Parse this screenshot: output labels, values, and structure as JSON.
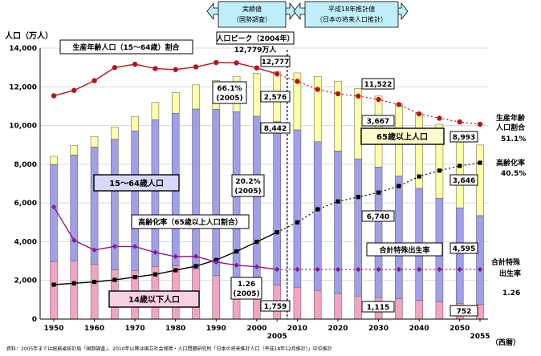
{
  "chart_data": {
    "type": "bar",
    "title": "",
    "ylabel": "人口（万人）",
    "xlabel": "（西暦）",
    "ylim": [
      0,
      14000
    ],
    "yticks": [
      "0",
      "2,000",
      "4,000",
      "6,000",
      "8,000",
      "10,000",
      "12,000",
      "14,000"
    ],
    "xtick_labels": [
      "1950",
      "1960",
      "1970",
      "1980",
      "1990",
      "2000",
      "2005",
      "2010",
      "2020",
      "2030",
      "2040",
      "2050",
      "2055"
    ],
    "years": [
      1950,
      1955,
      1960,
      1965,
      1970,
      1975,
      1980,
      1985,
      1990,
      1995,
      2000,
      2005,
      2010,
      2015,
      2020,
      2025,
      2030,
      2035,
      2040,
      2045,
      2050,
      2055
    ],
    "series": [
      {
        "name": "14歳以下人口",
        "color": "#f3a3c4",
        "values": [
          2979,
          3012,
          2843,
          2553,
          2515,
          2723,
          2751,
          2603,
          2249,
          2001,
          1847,
          1759,
          1648,
          1484,
          1324,
          1195,
          1115,
          1047,
          973,
          893,
          821,
          752
        ]
      },
      {
        "name": "15〜64歳人口",
        "color": "#9f9fea",
        "values": [
          5017,
          5473,
          6047,
          6744,
          7212,
          7581,
          7883,
          8251,
          8590,
          8717,
          8638,
          8442,
          8128,
          7681,
          7363,
          7085,
          6740,
          6343,
          5787,
          5353,
          4930,
          4595
        ]
      },
      {
        "name": "65歳以上人口",
        "color": "#ffffa8",
        "values": [
          411,
          479,
          540,
          624,
          739,
          887,
          1065,
          1247,
          1489,
          1826,
          2204,
          2576,
          2941,
          3378,
          3590,
          3635,
          3667,
          3725,
          3856,
          3819,
          3764,
          3646
        ]
      }
    ],
    "lines": [
      {
        "name": "生産年齢人口割合",
        "color": "#b0161c",
        "values": [
          59.6,
          61.2,
          64.1,
          68.0,
          69.0,
          67.7,
          67.4,
          68.2,
          69.5,
          69.4,
          67.9,
          66.1,
          63.9,
          61.5,
          60.2,
          59.5,
          58.5,
          57.0,
          54.2,
          52.9,
          51.8,
          51.1
        ]
      },
      {
        "name": "高齢化率",
        "color": "#000000",
        "values": [
          4.9,
          5.3,
          5.7,
          6.3,
          7.1,
          7.9,
          9.1,
          10.3,
          12.1,
          14.6,
          17.4,
          20.2,
          23.1,
          26.9,
          29.2,
          30.5,
          31.8,
          33.7,
          36.5,
          38.2,
          39.6,
          40.5
        ]
      },
      {
        "name": "合計特殊出生率",
        "color": "#8b1a8b",
        "values": [
          3.65,
          2.37,
          2.0,
          2.14,
          2.13,
          1.91,
          1.75,
          1.76,
          1.54,
          1.42,
          1.36,
          1.26,
          1.26,
          1.26,
          1.26,
          1.26,
          1.26,
          1.26,
          1.26,
          1.26,
          1.26,
          1.26
        ]
      }
    ],
    "ratio_axis_max": 100,
    "tfr_axis_max": 5.4,
    "legend_labels": {
      "working_ratio": "生産年齢人口（15〜64歳）割合",
      "elderly_ratio": "高齢化率（65歳以上人口割合）",
      "child": "14歳以下人口",
      "working": "15〜64歳人口",
      "elderly": "65歳以上人口",
      "tfr": "合計特殊出生率"
    },
    "header": {
      "actual_line1": "実績値",
      "actual_line2": "（国勢調査）",
      "proj_line1": "平成18年推計値",
      "proj_line2": "（日本の将来人口推計）"
    },
    "annotations": {
      "peak_title": "人口ピーク（2004年）",
      "peak_value": "12,779万人",
      "total_2005": "12,777",
      "elderly_2005": "2,576",
      "working_2005": "8,442",
      "child_2005": "1,759",
      "working_ratio_2005_a": "66.1%",
      "working_ratio_2005_b": "(2005)",
      "elderly_ratio_2005_a": "20.2%",
      "elderly_ratio_2005_b": "(2005)",
      "tfr_2005_a": "1.26",
      "tfr_2005_b": "(2005)",
      "total_2030": "11,522",
      "elderly_2030": "3,667",
      "working_2030": "6,740",
      "child_2030": "1,115",
      "total_2055": "8,993",
      "elderly_2055": "3,646",
      "working_2055": "4,595",
      "child_2055": "752",
      "right_working_1": "生産年齢",
      "right_working_2": "人口割合",
      "right_working_3": "51.1%",
      "right_aging_1": "高齢化率",
      "right_aging_2": "40.5%",
      "right_tfr_1": "合計特殊",
      "right_tfr_2": "出生率",
      "right_tfr_3": "1.26"
    },
    "source": "資料：2005年までは総務省統計局「国勢調査」、2010年以降は国立社会保障・人口問題研究所「日本の将来推計人口（平成18年12月推計）」中位推計"
  }
}
